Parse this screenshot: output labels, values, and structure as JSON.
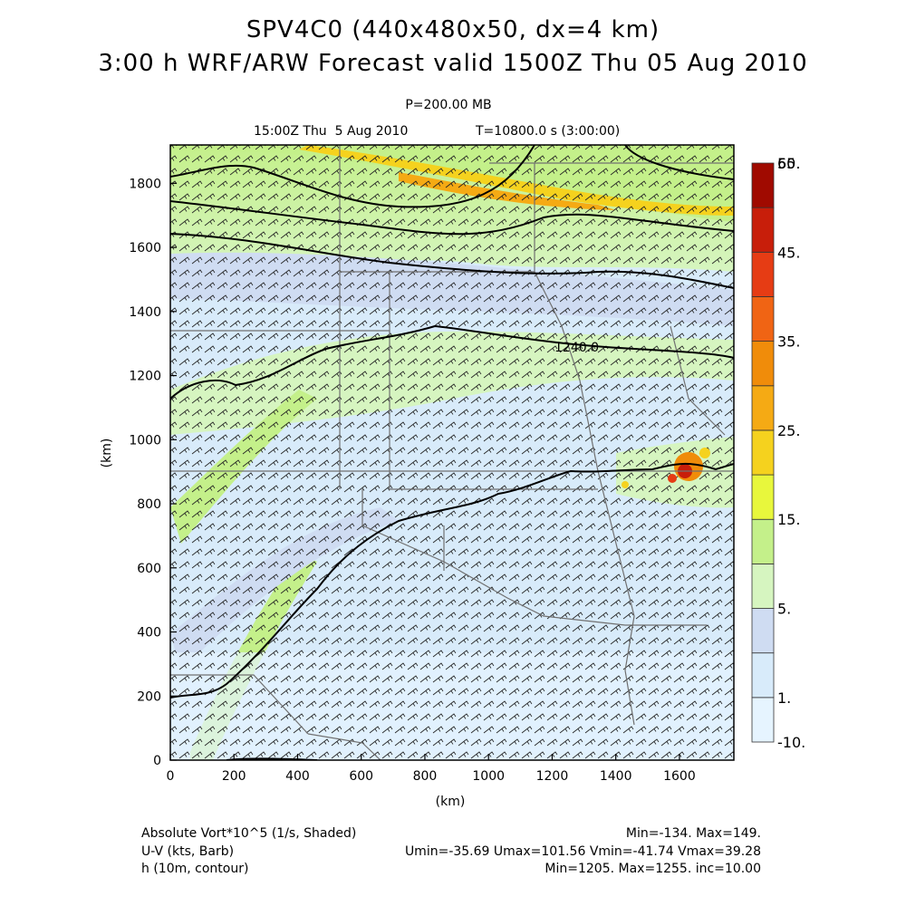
{
  "title": {
    "line1": "SPV4C0 (440x480x50, dx=4 km)",
    "line2": "3:00 h WRF/ARW Forecast valid 1500Z Thu 05 Aug 2010"
  },
  "level": "P=200.00 MB",
  "time_label": "15:00Z Thu  5 Aug 2010",
  "time_seconds": "T=10800.0 s (3:00:00)",
  "axes": {
    "x_label": "(km)",
    "y_label": "(km)",
    "x_ticks": [
      "0",
      "200",
      "400",
      "600",
      "800",
      "1000",
      "1200",
      "1400",
      "1600"
    ],
    "y_ticks": [
      "0",
      "200",
      "400",
      "600",
      "800",
      "1000",
      "1200",
      "1400",
      "1600",
      "1800"
    ]
  },
  "contour_label": "1240.0",
  "colorbar": {
    "labels": [
      "-10.",
      "1.",
      "5.",
      "15.",
      "25.",
      "35.",
      "45.",
      "55.",
      "60."
    ],
    "colors": [
      "#e6f4ff",
      "#d8ebfa",
      "#cfdcf2",
      "#d6f5c0",
      "#c4f08a",
      "#e8f73c",
      "#f5d21e",
      "#f5aa14",
      "#f08c0a",
      "#f06414",
      "#e63c14",
      "#c81e0a",
      "#a00a00"
    ]
  },
  "footer": {
    "left": [
      "Absolute Vort*10^5 (1/s, Shaded)",
      "U-V (kts, Barb)",
      "h (10m, contour)"
    ],
    "right": [
      "Min=-134. Max=149.",
      "Umin=-35.69 Umax=101.56 Vmin=-41.74 Vmax=39.28",
      "Min=1205. Max=1255. inc=10.00"
    ]
  }
}
